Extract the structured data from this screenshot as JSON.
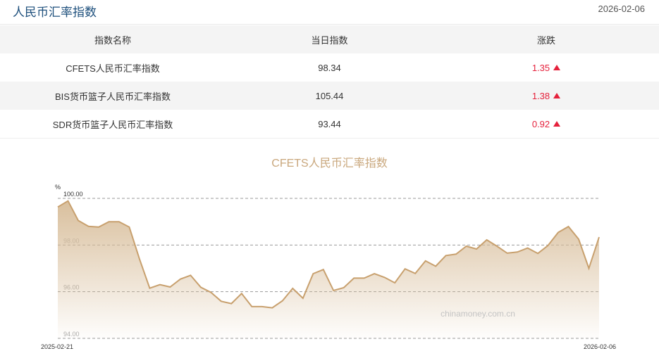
{
  "header": {
    "title": "人民币汇率指数",
    "date": "2026-02-06"
  },
  "table": {
    "columns": [
      "指数名称",
      "当日指数",
      "涨跌"
    ],
    "rows": [
      {
        "name": "CFETS人民币汇率指数",
        "value": "98.34",
        "change": "1.35",
        "direction": "up"
      },
      {
        "name": "BIS货币篮子人民币汇率指数",
        "value": "105.44",
        "change": "1.38",
        "direction": "up"
      },
      {
        "name": "SDR货币篮子人民币汇率指数",
        "value": "93.44",
        "change": "0.92",
        "direction": "up"
      }
    ],
    "up_color": "#e5213c"
  },
  "chart_data": {
    "type": "area",
    "title": "CFETS人民币汇率指数",
    "ylabel": "%",
    "ylim": [
      94,
      100
    ],
    "yticks": [
      "100.00",
      "98.00",
      "96.00",
      "94.00"
    ],
    "x_start": "2025-02-21",
    "x_end": "2026-02-06",
    "grid": true,
    "line_color": "#c8a06e",
    "watermark": "chinamoney.com.cn",
    "values": [
      99.63,
      99.89,
      99.05,
      98.8,
      98.77,
      99.0,
      99.0,
      98.77,
      97.4,
      96.15,
      96.3,
      96.2,
      96.54,
      96.7,
      96.19,
      95.97,
      95.59,
      95.49,
      95.92,
      95.36,
      95.36,
      95.31,
      95.61,
      96.14,
      95.72,
      96.77,
      96.95,
      96.05,
      96.17,
      96.58,
      96.58,
      96.77,
      96.61,
      96.38,
      96.98,
      96.78,
      97.32,
      97.09,
      97.55,
      97.61,
      97.95,
      97.83,
      98.22,
      97.95,
      97.65,
      97.7,
      97.87,
      97.64,
      97.98,
      98.54,
      98.79,
      98.25,
      97.0,
      98.34
    ]
  }
}
